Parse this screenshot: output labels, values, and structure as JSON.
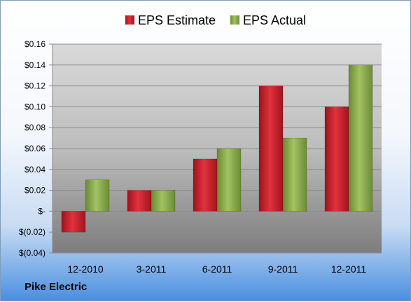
{
  "company_label": "Pike Electric",
  "chart_data": {
    "type": "bar",
    "categories": [
      "12-2010",
      "3-2011",
      "6-2011",
      "9-2011",
      "12-2011"
    ],
    "series": [
      {
        "name": "EPS Estimate",
        "values": [
          -0.02,
          0.02,
          0.05,
          0.12,
          0.1
        ],
        "color": "#c8202b"
      },
      {
        "name": "EPS Actual",
        "values": [
          0.03,
          0.02,
          0.06,
          0.07,
          0.14
        ],
        "color": "#86a84a"
      }
    ],
    "ylim": [
      -0.04,
      0.16
    ],
    "yticks": [
      -0.04,
      -0.02,
      0,
      0.02,
      0.04,
      0.06,
      0.08,
      0.1,
      0.12,
      0.14,
      0.16
    ],
    "ytick_labels": [
      "$(0.04)",
      "$(0.02)",
      "$-",
      "$0.02",
      "$0.04",
      "$0.06",
      "$0.08",
      "$0.10",
      "$0.12",
      "$0.14",
      "$0.16"
    ],
    "grid": true,
    "legend": "top-center"
  }
}
